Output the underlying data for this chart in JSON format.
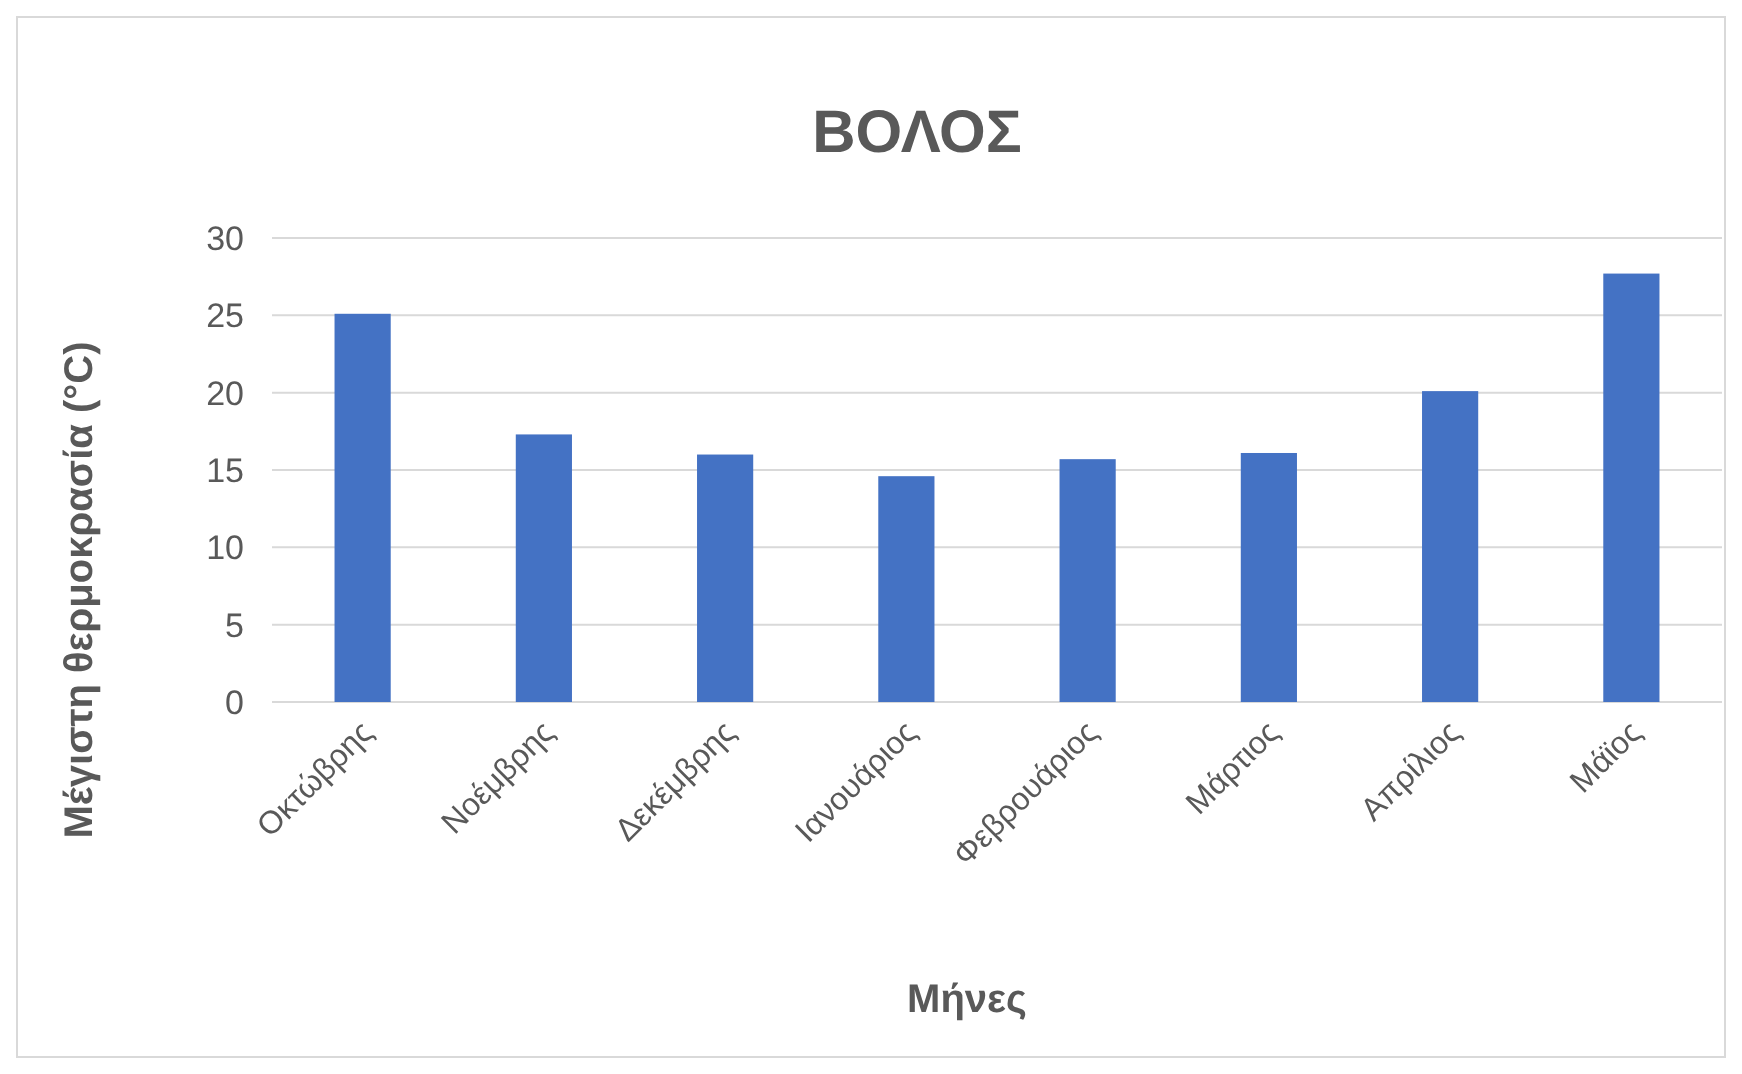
{
  "chart_data": {
    "type": "bar",
    "title": "ΒΟΛΟΣ",
    "xlabel": "Μήνες",
    "ylabel": "Μέγιστη θερμοκρασία (°C)",
    "categories": [
      "Οκτώβρης",
      "Νοέμβρης",
      "Δεκέμβρης",
      "Ιανουάριος",
      "Φεβρουάριος",
      "Μάρτιος",
      "Απρίλιος",
      "Μάϊος"
    ],
    "values": [
      25.1,
      17.3,
      16.0,
      14.6,
      15.7,
      16.1,
      20.1,
      27.7
    ],
    "color": "#4472c4",
    "ylim": [
      0,
      30
    ],
    "yticks": [
      0,
      5,
      10,
      15,
      20,
      25,
      30
    ],
    "grid": "y"
  }
}
